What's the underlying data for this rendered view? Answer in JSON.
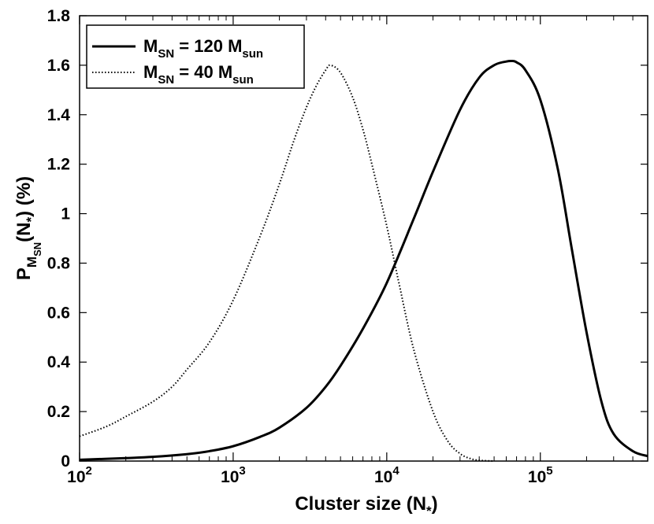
{
  "chart_data": {
    "type": "line",
    "title": "",
    "xlabel": "Cluster size (N",
    "xlabel_sub": "*",
    "xlabel_close": ")",
    "ylabel": "P",
    "ylabel_sub1": "M",
    "ylabel_sub2": "SN",
    "ylabel_arg": "(N",
    "ylabel_arg_sub": "*",
    "ylabel_close": ") (%)",
    "xscale": "log",
    "xlim": [
      100,
      500000
    ],
    "ylim": [
      0,
      1.8
    ],
    "yticks": [
      "0",
      "0.2",
      "0.4",
      "0.6",
      "0.8",
      "1",
      "1.2",
      "1.4",
      "1.6",
      "1.8"
    ],
    "xticks": [
      {
        "base": "10",
        "exp": "2"
      },
      {
        "base": "10",
        "exp": "3"
      },
      {
        "base": "10",
        "exp": "4"
      },
      {
        "base": "10",
        "exp": "5"
      }
    ],
    "legend_position": "top-left",
    "series": [
      {
        "name": "M_SN = 120 M_sun",
        "legend": {
          "m": "M",
          "sub": "SN",
          "mid": " = 120 M",
          "sub2": "sun"
        },
        "style": "solid",
        "x": [
          100,
          200,
          300,
          500,
          700,
          1000,
          1500,
          2000,
          3000,
          4000,
          5000,
          7000,
          10000,
          15000,
          20000,
          30000,
          40000,
          50000,
          60000,
          66000,
          70000,
          80000,
          100000,
          130000,
          160000,
          200000,
          250000,
          300000,
          400000,
          500000
        ],
        "y": [
          0.005,
          0.012,
          0.017,
          0.028,
          0.04,
          0.06,
          0.098,
          0.135,
          0.215,
          0.3,
          0.385,
          0.535,
          0.72,
          0.98,
          1.17,
          1.42,
          1.55,
          1.6,
          1.615,
          1.617,
          1.612,
          1.58,
          1.46,
          1.18,
          0.86,
          0.52,
          0.24,
          0.11,
          0.04,
          0.02
        ]
      },
      {
        "name": "M_SN = 40 M_sun",
        "legend": {
          "m": "M",
          "sub": "SN",
          "mid": " = 40 M",
          "sub2": "sun"
        },
        "style": "dotted",
        "x": [
          100,
          150,
          200,
          300,
          400,
          500,
          700,
          1000,
          1500,
          2000,
          2500,
          3000,
          3500,
          4000,
          4300,
          5000,
          6000,
          7000,
          8000,
          10000,
          12000,
          15000,
          20000,
          25000,
          30000,
          35000,
          40000,
          50000
        ],
        "y": [
          0.1,
          0.14,
          0.18,
          0.24,
          0.3,
          0.37,
          0.48,
          0.65,
          0.91,
          1.12,
          1.3,
          1.43,
          1.52,
          1.58,
          1.6,
          1.57,
          1.47,
          1.34,
          1.2,
          0.95,
          0.72,
          0.45,
          0.2,
          0.08,
          0.03,
          0.01,
          0.003,
          0.0
        ]
      }
    ]
  }
}
